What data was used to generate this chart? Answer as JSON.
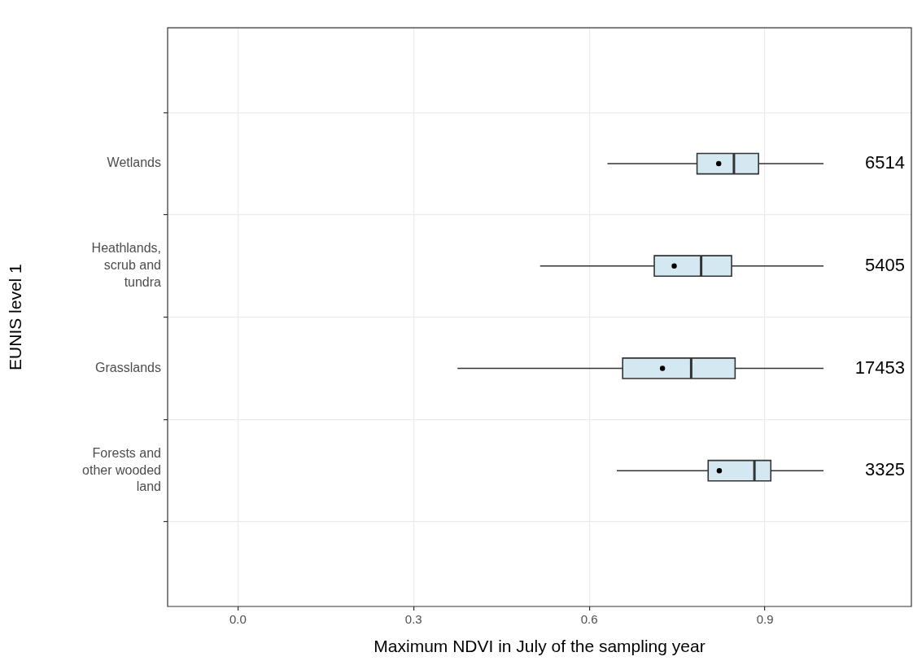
{
  "chart_data": {
    "type": "box",
    "orientation": "horizontal",
    "xlabel": "Maximum NDVI in July of the sampling year",
    "ylabel": "EUNIS level 1",
    "categories": [
      "Wetlands",
      "Heathlands, scrub and tundra",
      "Grasslands",
      "Forests and other wooded land"
    ],
    "xlim": [
      -0.12,
      1.15
    ],
    "xticks": [
      {
        "value": 0,
        "label": "0.0"
      },
      0.3,
      0.6,
      0.9
    ],
    "grid": true,
    "annotations": [
      "6514",
      "5405",
      "17453",
      "3325"
    ],
    "series": [
      {
        "color": "#d3e8f1",
        "boxes": [
          {
            "low": 0.631,
            "q1": 0.784,
            "median": 0.847,
            "q3": 0.889,
            "high": 1.0,
            "mean": 0.821
          },
          {
            "low": 0.516,
            "q1": 0.711,
            "median": 0.791,
            "q3": 0.843,
            "high": 1.0,
            "mean": 0.745
          },
          {
            "low": 0.375,
            "q1": 0.657,
            "median": 0.774,
            "q3": 0.849,
            "high": 1.0,
            "mean": 0.725
          },
          {
            "low": 0.647,
            "q1": 0.803,
            "median": 0.882,
            "q3": 0.91,
            "high": 1.0,
            "mean": 0.822
          }
        ]
      }
    ]
  }
}
